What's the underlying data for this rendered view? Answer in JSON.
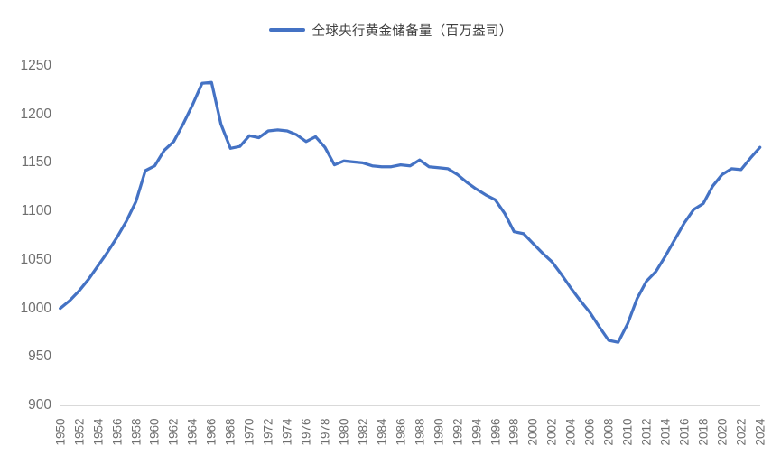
{
  "legend": {
    "label": "全球央行黄金储备量（百万盎司）"
  },
  "colors": {
    "line": "#4472C4",
    "axis_line": "#D9D9D9",
    "tick_text": "#6E6E6E",
    "legend_text": "#3F3F3F"
  },
  "chart_data": {
    "type": "line",
    "title": "全球央行黄金储备量（百万盎司）",
    "legend_position": "top-center",
    "grid": false,
    "x_start": 1950,
    "x_end": 2024,
    "x": [
      1950,
      1951,
      1952,
      1953,
      1954,
      1955,
      1956,
      1957,
      1958,
      1959,
      1960,
      1961,
      1962,
      1963,
      1964,
      1965,
      1966,
      1967,
      1968,
      1969,
      1970,
      1971,
      1972,
      1973,
      1974,
      1975,
      1976,
      1977,
      1978,
      1979,
      1980,
      1981,
      1982,
      1983,
      1984,
      1985,
      1986,
      1987,
      1988,
      1989,
      1990,
      1991,
      1992,
      1993,
      1994,
      1995,
      1996,
      1997,
      1998,
      1999,
      2000,
      2001,
      2002,
      2003,
      2004,
      2005,
      2006,
      2007,
      2008,
      2009,
      2010,
      2011,
      2012,
      2013,
      2014,
      2015,
      2016,
      2017,
      2018,
      2019,
      2020,
      2021,
      2022,
      2023,
      2024
    ],
    "values": [
      1000,
      1008,
      1018,
      1030,
      1044,
      1058,
      1073,
      1090,
      1110,
      1142,
      1147,
      1163,
      1172,
      1190,
      1210,
      1232,
      1233,
      1190,
      1165,
      1167,
      1178,
      1176,
      1183,
      1184,
      1183,
      1179,
      1172,
      1177,
      1166,
      1148,
      1152,
      1151,
      1150,
      1147,
      1146,
      1146,
      1148,
      1147,
      1153,
      1146,
      1145,
      1144,
      1138,
      1130,
      1123,
      1117,
      1112,
      1098,
      1079,
      1077,
      1067,
      1057,
      1048,
      1035,
      1021,
      1008,
      996,
      981,
      967,
      965,
      984,
      1010,
      1028,
      1038,
      1054,
      1071,
      1088,
      1102,
      1108,
      1126,
      1138,
      1144,
      1143,
      1155,
      1166
    ],
    "ylim": [
      900,
      1250
    ],
    "y_ticks": [
      "900",
      "950",
      "1000",
      "1050",
      "1100",
      "1150",
      "1200",
      "1250"
    ],
    "x_tick_step": 2,
    "x_tick_labels": [
      "1950",
      "1952",
      "1954",
      "1956",
      "1958",
      "1960",
      "1962",
      "1964",
      "1966",
      "1968",
      "1970",
      "1972",
      "1974",
      "1976",
      "1978",
      "1980",
      "1982",
      "1984",
      "1986",
      "1988",
      "1990",
      "1992",
      "1994",
      "1996",
      "1998",
      "2000",
      "2002",
      "2004",
      "2006",
      "2008",
      "2010",
      "2012",
      "2014",
      "2016",
      "2018",
      "2020",
      "2022",
      "2024"
    ]
  }
}
